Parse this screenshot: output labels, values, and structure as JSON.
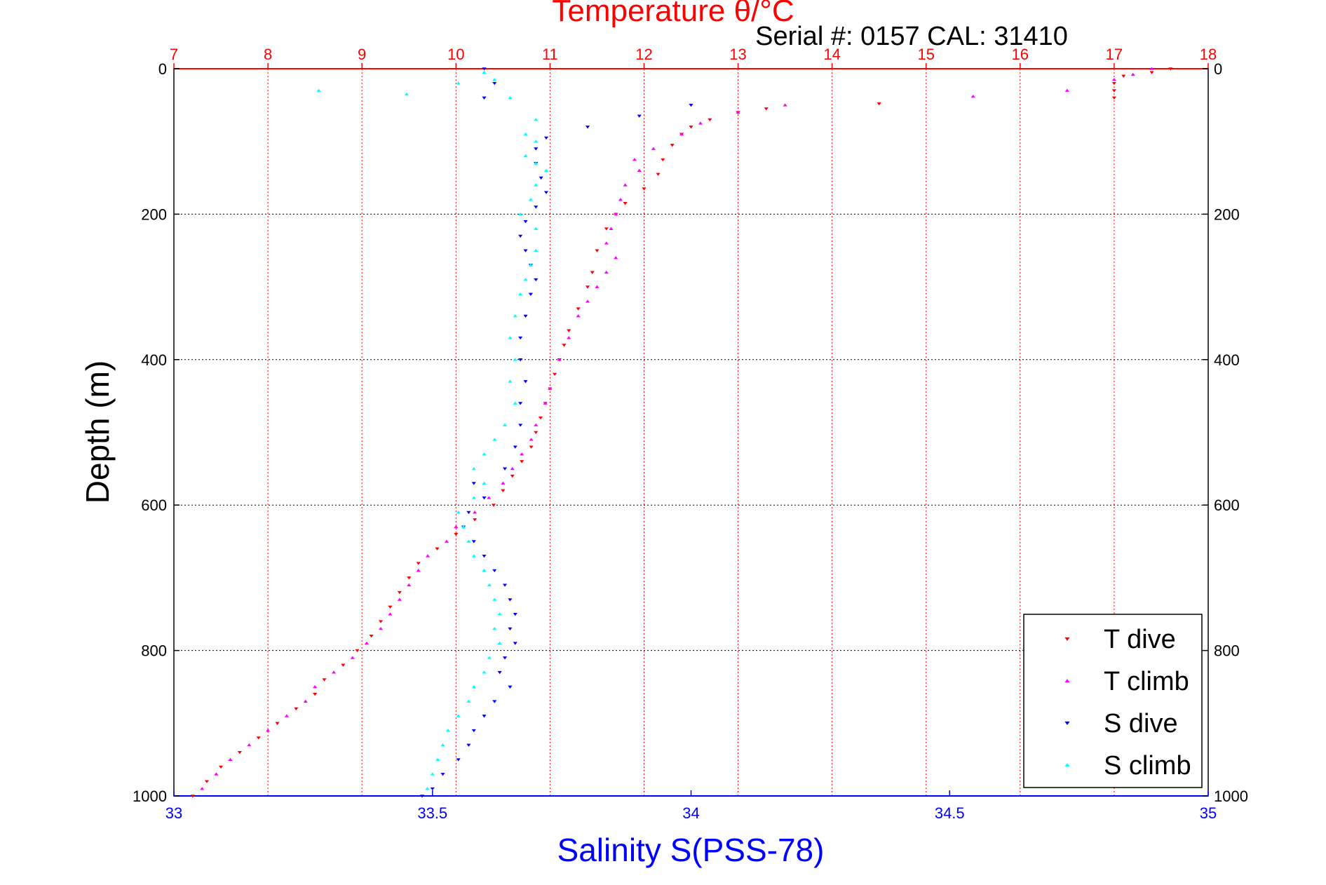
{
  "chart_data": {
    "type": "scatter",
    "title": "Temperature θ/°C",
    "subtitle": "Serial #: 0157  CAL: 31410",
    "xlabel": "Salinity S(PSS-78)",
    "ylabel": "Depth (m)",
    "xlim_salinity": [
      33,
      35
    ],
    "xlim_temperature": [
      7,
      18
    ],
    "ylim_depth": [
      0,
      1000
    ],
    "y_reversed": true,
    "grid": true,
    "legend_position": "bottom-right",
    "salinity_ticks": [
      "33",
      "33.5",
      "34",
      "34.5",
      "35"
    ],
    "temperature_ticks": [
      "7",
      "8",
      "9",
      "10",
      "11",
      "12",
      "13",
      "14",
      "15",
      "16",
      "17",
      "18"
    ],
    "depth_ticks": [
      "0",
      "200",
      "400",
      "600",
      "800",
      "1000"
    ],
    "colors": {
      "t_dive": "#ff0000",
      "t_climb": "#ff00ff",
      "s_dive": "#0000ff",
      "s_climb": "#00ffff"
    },
    "series": [
      {
        "name": "T dive",
        "axis": "temperature",
        "marker": "triangle-down",
        "points": [
          [
            17.6,
            0
          ],
          [
            17.4,
            5
          ],
          [
            17.1,
            10
          ],
          [
            17.0,
            20
          ],
          [
            17.0,
            30
          ],
          [
            17.0,
            40
          ],
          [
            14.5,
            48
          ],
          [
            13.3,
            55
          ],
          [
            13.0,
            60
          ],
          [
            12.7,
            70
          ],
          [
            12.5,
            80
          ],
          [
            12.4,
            90
          ],
          [
            12.3,
            105
          ],
          [
            12.2,
            125
          ],
          [
            12.15,
            145
          ],
          [
            12.0,
            165
          ],
          [
            11.8,
            185
          ],
          [
            11.7,
            200
          ],
          [
            11.6,
            220
          ],
          [
            11.5,
            250
          ],
          [
            11.45,
            280
          ],
          [
            11.4,
            300
          ],
          [
            11.3,
            330
          ],
          [
            11.2,
            360
          ],
          [
            11.15,
            380
          ],
          [
            11.1,
            400
          ],
          [
            11.05,
            420
          ],
          [
            11.0,
            440
          ],
          [
            10.95,
            460
          ],
          [
            10.9,
            480
          ],
          [
            10.85,
            500
          ],
          [
            10.8,
            520
          ],
          [
            10.7,
            540
          ],
          [
            10.6,
            560
          ],
          [
            10.5,
            580
          ],
          [
            10.4,
            600
          ],
          [
            10.2,
            620
          ],
          [
            10.0,
            640
          ],
          [
            9.8,
            660
          ],
          [
            9.6,
            680
          ],
          [
            9.5,
            700
          ],
          [
            9.4,
            720
          ],
          [
            9.3,
            740
          ],
          [
            9.2,
            760
          ],
          [
            9.1,
            780
          ],
          [
            8.95,
            800
          ],
          [
            8.8,
            820
          ],
          [
            8.6,
            840
          ],
          [
            8.5,
            860
          ],
          [
            8.3,
            880
          ],
          [
            8.1,
            900
          ],
          [
            7.9,
            920
          ],
          [
            7.7,
            940
          ],
          [
            7.5,
            960
          ],
          [
            7.35,
            980
          ],
          [
            7.2,
            1000
          ]
        ]
      },
      {
        "name": "T climb",
        "axis": "temperature",
        "marker": "triangle-up",
        "points": [
          [
            17.4,
            0
          ],
          [
            17.2,
            8
          ],
          [
            17.0,
            15
          ],
          [
            16.5,
            30
          ],
          [
            15.5,
            38
          ],
          [
            13.5,
            50
          ],
          [
            13.0,
            60
          ],
          [
            12.6,
            75
          ],
          [
            12.4,
            90
          ],
          [
            12.1,
            110
          ],
          [
            11.9,
            125
          ],
          [
            11.95,
            140
          ],
          [
            11.8,
            160
          ],
          [
            11.75,
            180
          ],
          [
            11.7,
            200
          ],
          [
            11.65,
            220
          ],
          [
            11.6,
            240
          ],
          [
            11.7,
            260
          ],
          [
            11.6,
            280
          ],
          [
            11.5,
            300
          ],
          [
            11.4,
            320
          ],
          [
            11.3,
            340
          ],
          [
            11.2,
            370
          ],
          [
            11.1,
            400
          ],
          [
            11.0,
            440
          ],
          [
            10.95,
            460
          ],
          [
            10.85,
            490
          ],
          [
            10.8,
            510
          ],
          [
            10.7,
            530
          ],
          [
            10.6,
            550
          ],
          [
            10.5,
            570
          ],
          [
            10.35,
            590
          ],
          [
            10.2,
            610
          ],
          [
            10.0,
            630
          ],
          [
            9.9,
            650
          ],
          [
            9.7,
            670
          ],
          [
            9.6,
            690
          ],
          [
            9.5,
            710
          ],
          [
            9.4,
            730
          ],
          [
            9.3,
            750
          ],
          [
            9.2,
            770
          ],
          [
            9.05,
            790
          ],
          [
            8.9,
            810
          ],
          [
            8.7,
            830
          ],
          [
            8.5,
            850
          ],
          [
            8.4,
            870
          ],
          [
            8.2,
            890
          ],
          [
            8.0,
            910
          ],
          [
            7.8,
            930
          ],
          [
            7.6,
            950
          ],
          [
            7.45,
            970
          ],
          [
            7.3,
            990
          ]
        ]
      },
      {
        "name": "S dive",
        "axis": "salinity",
        "marker": "triangle-down",
        "points": [
          [
            33.6,
            0
          ],
          [
            33.62,
            20
          ],
          [
            33.6,
            40
          ],
          [
            34.0,
            50
          ],
          [
            33.9,
            65
          ],
          [
            33.8,
            80
          ],
          [
            33.72,
            95
          ],
          [
            33.7,
            110
          ],
          [
            33.7,
            130
          ],
          [
            33.71,
            150
          ],
          [
            33.72,
            170
          ],
          [
            33.7,
            190
          ],
          [
            33.68,
            210
          ],
          [
            33.67,
            230
          ],
          [
            33.68,
            250
          ],
          [
            33.69,
            270
          ],
          [
            33.7,
            290
          ],
          [
            33.69,
            310
          ],
          [
            33.68,
            340
          ],
          [
            33.67,
            370
          ],
          [
            33.67,
            400
          ],
          [
            33.68,
            430
          ],
          [
            33.67,
            460
          ],
          [
            33.67,
            490
          ],
          [
            33.66,
            520
          ],
          [
            33.64,
            550
          ],
          [
            33.58,
            570
          ],
          [
            33.6,
            590
          ],
          [
            33.57,
            610
          ],
          [
            33.56,
            630
          ],
          [
            33.58,
            650
          ],
          [
            33.6,
            670
          ],
          [
            33.62,
            690
          ],
          [
            33.64,
            710
          ],
          [
            33.65,
            730
          ],
          [
            33.66,
            750
          ],
          [
            33.65,
            770
          ],
          [
            33.66,
            790
          ],
          [
            33.64,
            810
          ],
          [
            33.63,
            830
          ],
          [
            33.65,
            850
          ],
          [
            33.62,
            870
          ],
          [
            33.6,
            890
          ],
          [
            33.58,
            910
          ],
          [
            33.57,
            930
          ],
          [
            33.55,
            950
          ],
          [
            33.52,
            970
          ],
          [
            33.5,
            990
          ],
          [
            33.48,
            1000
          ]
        ]
      },
      {
        "name": "S climb",
        "axis": "salinity",
        "marker": "triangle-up",
        "points": [
          [
            33.28,
            30
          ],
          [
            33.45,
            35
          ],
          [
            33.55,
            20
          ],
          [
            33.6,
            5
          ],
          [
            33.62,
            15
          ],
          [
            33.65,
            40
          ],
          [
            33.7,
            70
          ],
          [
            33.68,
            90
          ],
          [
            33.7,
            100
          ],
          [
            33.68,
            120
          ],
          [
            33.7,
            130
          ],
          [
            33.72,
            140
          ],
          [
            33.7,
            160
          ],
          [
            33.69,
            180
          ],
          [
            33.67,
            200
          ],
          [
            33.7,
            220
          ],
          [
            33.7,
            250
          ],
          [
            33.69,
            270
          ],
          [
            33.68,
            290
          ],
          [
            33.67,
            310
          ],
          [
            33.66,
            340
          ],
          [
            33.65,
            370
          ],
          [
            33.66,
            400
          ],
          [
            33.65,
            430
          ],
          [
            33.66,
            460
          ],
          [
            33.64,
            490
          ],
          [
            33.62,
            510
          ],
          [
            33.6,
            530
          ],
          [
            33.58,
            550
          ],
          [
            33.6,
            570
          ],
          [
            33.58,
            590
          ],
          [
            33.55,
            610
          ],
          [
            33.56,
            630
          ],
          [
            33.57,
            650
          ],
          [
            33.58,
            670
          ],
          [
            33.6,
            690
          ],
          [
            33.61,
            710
          ],
          [
            33.62,
            730
          ],
          [
            33.63,
            750
          ],
          [
            33.62,
            770
          ],
          [
            33.63,
            790
          ],
          [
            33.61,
            810
          ],
          [
            33.6,
            830
          ],
          [
            33.58,
            850
          ],
          [
            33.57,
            870
          ],
          [
            33.55,
            890
          ],
          [
            33.53,
            910
          ],
          [
            33.52,
            930
          ],
          [
            33.51,
            950
          ],
          [
            33.5,
            970
          ],
          [
            33.49,
            990
          ]
        ]
      }
    ]
  }
}
